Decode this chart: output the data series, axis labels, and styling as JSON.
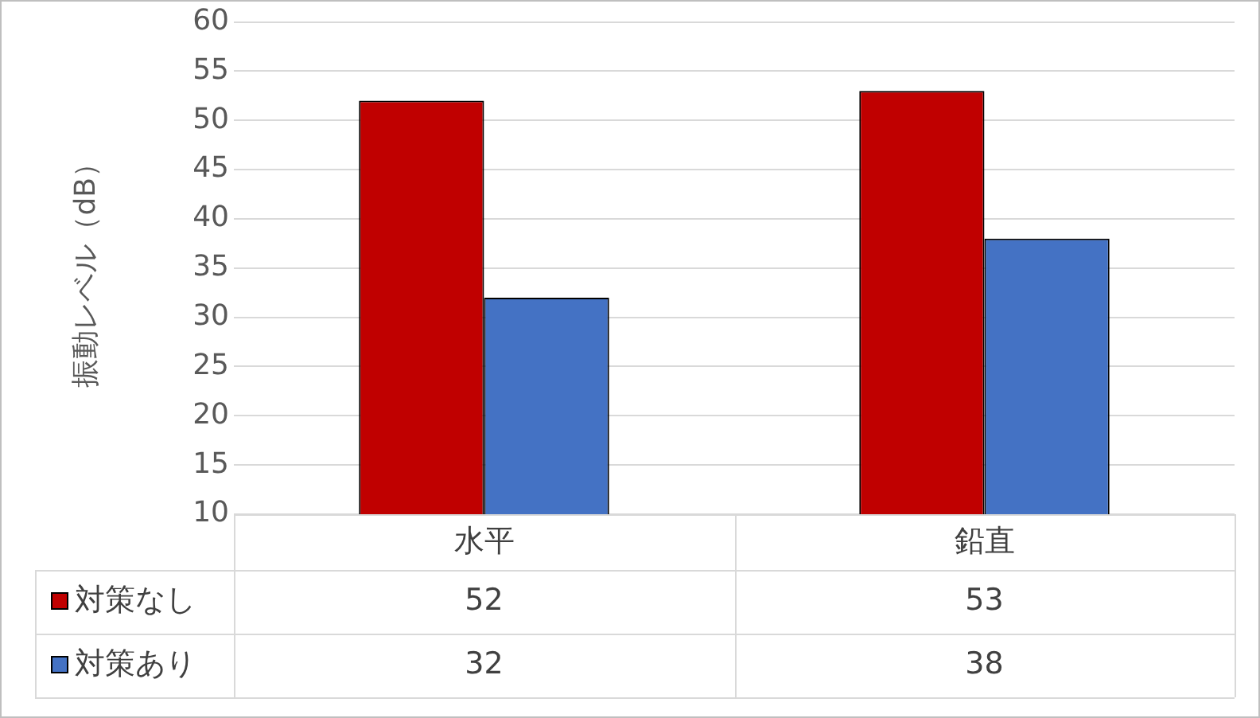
{
  "chart_data": {
    "type": "bar",
    "ylabel": "振動レベル（dB）",
    "categories": [
      "水平",
      "鉛直"
    ],
    "series": [
      {
        "name": "対策なし",
        "color": "#c00000",
        "values": [
          52,
          53
        ]
      },
      {
        "name": "対策あり",
        "color": "#4472c4",
        "values": [
          32,
          38
        ]
      }
    ],
    "ylim": [
      10,
      60
    ],
    "yticks": [
      10,
      15,
      20,
      25,
      30,
      35,
      40,
      45,
      50,
      55,
      60
    ],
    "grid": "y",
    "legend": "bottom",
    "data_labels": true
  }
}
